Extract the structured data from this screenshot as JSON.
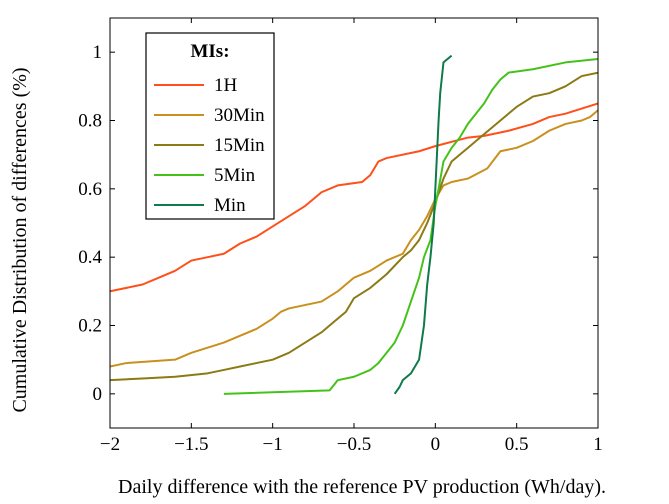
{
  "chart_data": {
    "type": "line",
    "xlabel": "Daily difference with the reference PV production (Wh/day).",
    "ylabel": "Cumulative Distribution of differences (%)",
    "xlim": [
      -2,
      1
    ],
    "ylim": [
      -0.1,
      1.1
    ],
    "xticks": [
      -2,
      -1.5,
      -1,
      -0.5,
      0,
      0.5,
      1
    ],
    "xtick_labels": [
      "−2",
      "−1.5",
      "−1",
      "−0.5",
      "0",
      "0.5",
      "1"
    ],
    "yticks": [
      0,
      0.2,
      0.4,
      0.6,
      0.8,
      1
    ],
    "ytick_labels": [
      "0",
      "0.2",
      "0.4",
      "0.6",
      "0.8",
      "1"
    ],
    "grid": false,
    "legend": {
      "title": "MIs:",
      "position": "top-left"
    },
    "series": [
      {
        "name": "1H",
        "color": "#ff4f1a",
        "points": [
          [
            -2,
            0.3
          ],
          [
            -1.8,
            0.32
          ],
          [
            -1.7,
            0.34
          ],
          [
            -1.6,
            0.36
          ],
          [
            -1.5,
            0.39
          ],
          [
            -1.4,
            0.4
          ],
          [
            -1.3,
            0.41
          ],
          [
            -1.2,
            0.44
          ],
          [
            -1.1,
            0.46
          ],
          [
            -1.0,
            0.49
          ],
          [
            -0.9,
            0.52
          ],
          [
            -0.8,
            0.55
          ],
          [
            -0.75,
            0.57
          ],
          [
            -0.7,
            0.59
          ],
          [
            -0.6,
            0.61
          ],
          [
            -0.45,
            0.62
          ],
          [
            -0.4,
            0.64
          ],
          [
            -0.35,
            0.68
          ],
          [
            -0.3,
            0.69
          ],
          [
            -0.1,
            0.71
          ],
          [
            0,
            0.725
          ],
          [
            0.2,
            0.75
          ],
          [
            0.3,
            0.755
          ],
          [
            0.45,
            0.77
          ],
          [
            0.6,
            0.79
          ],
          [
            0.7,
            0.81
          ],
          [
            0.8,
            0.82
          ],
          [
            0.9,
            0.835
          ],
          [
            1.0,
            0.85
          ]
        ]
      },
      {
        "name": "30Min",
        "color": "#c8901e",
        "points": [
          [
            -2,
            0.08
          ],
          [
            -1.9,
            0.09
          ],
          [
            -1.6,
            0.1
          ],
          [
            -1.5,
            0.12
          ],
          [
            -1.3,
            0.15
          ],
          [
            -1.1,
            0.19
          ],
          [
            -1.0,
            0.22
          ],
          [
            -0.95,
            0.24
          ],
          [
            -0.9,
            0.25
          ],
          [
            -0.7,
            0.27
          ],
          [
            -0.6,
            0.3
          ],
          [
            -0.5,
            0.34
          ],
          [
            -0.4,
            0.36
          ],
          [
            -0.3,
            0.39
          ],
          [
            -0.2,
            0.41
          ],
          [
            -0.15,
            0.45
          ],
          [
            -0.1,
            0.48
          ],
          [
            -0.05,
            0.52
          ],
          [
            0,
            0.57
          ],
          [
            0.05,
            0.61
          ],
          [
            0.1,
            0.62
          ],
          [
            0.2,
            0.63
          ],
          [
            0.32,
            0.66
          ],
          [
            0.4,
            0.71
          ],
          [
            0.5,
            0.72
          ],
          [
            0.6,
            0.74
          ],
          [
            0.7,
            0.77
          ],
          [
            0.8,
            0.79
          ],
          [
            0.9,
            0.8
          ],
          [
            0.95,
            0.81
          ],
          [
            1.0,
            0.83
          ]
        ]
      },
      {
        "name": "15Min",
        "color": "#8c7a14",
        "points": [
          [
            -2,
            0.04
          ],
          [
            -1.8,
            0.045
          ],
          [
            -1.6,
            0.05
          ],
          [
            -1.4,
            0.06
          ],
          [
            -1.3,
            0.07
          ],
          [
            -1.2,
            0.08
          ],
          [
            -1.1,
            0.09
          ],
          [
            -1.0,
            0.1
          ],
          [
            -0.9,
            0.12
          ],
          [
            -0.8,
            0.15
          ],
          [
            -0.7,
            0.18
          ],
          [
            -0.6,
            0.22
          ],
          [
            -0.55,
            0.24
          ],
          [
            -0.5,
            0.28
          ],
          [
            -0.4,
            0.31
          ],
          [
            -0.3,
            0.35
          ],
          [
            -0.2,
            0.4
          ],
          [
            -0.15,
            0.42
          ],
          [
            -0.1,
            0.45
          ],
          [
            -0.05,
            0.5
          ],
          [
            0,
            0.56
          ],
          [
            0.05,
            0.63
          ],
          [
            0.1,
            0.68
          ],
          [
            0.2,
            0.72
          ],
          [
            0.3,
            0.76
          ],
          [
            0.4,
            0.8
          ],
          [
            0.5,
            0.84
          ],
          [
            0.6,
            0.87
          ],
          [
            0.7,
            0.88
          ],
          [
            0.8,
            0.9
          ],
          [
            0.9,
            0.93
          ],
          [
            1.0,
            0.94
          ]
        ]
      },
      {
        "name": "5Min",
        "color": "#45c21a",
        "points": [
          [
            -1.3,
            0.0
          ],
          [
            -0.65,
            0.01
          ],
          [
            -0.6,
            0.04
          ],
          [
            -0.5,
            0.05
          ],
          [
            -0.4,
            0.07
          ],
          [
            -0.35,
            0.09
          ],
          [
            -0.3,
            0.12
          ],
          [
            -0.25,
            0.15
          ],
          [
            -0.2,
            0.2
          ],
          [
            -0.15,
            0.27
          ],
          [
            -0.1,
            0.34
          ],
          [
            -0.07,
            0.4
          ],
          [
            -0.03,
            0.45
          ],
          [
            0,
            0.55
          ],
          [
            0.02,
            0.6
          ],
          [
            0.05,
            0.68
          ],
          [
            0.1,
            0.72
          ],
          [
            0.15,
            0.75
          ],
          [
            0.2,
            0.79
          ],
          [
            0.25,
            0.82
          ],
          [
            0.3,
            0.85
          ],
          [
            0.35,
            0.89
          ],
          [
            0.4,
            0.92
          ],
          [
            0.45,
            0.94
          ],
          [
            0.6,
            0.95
          ],
          [
            0.8,
            0.97
          ],
          [
            1.0,
            0.98
          ]
        ]
      },
      {
        "name": "Min",
        "color": "#0f7a4a",
        "points": [
          [
            -0.25,
            0.0
          ],
          [
            -0.22,
            0.02
          ],
          [
            -0.2,
            0.04
          ],
          [
            -0.15,
            0.06
          ],
          [
            -0.1,
            0.1
          ],
          [
            -0.07,
            0.2
          ],
          [
            -0.05,
            0.32
          ],
          [
            -0.03,
            0.4
          ],
          [
            -0.01,
            0.5
          ],
          [
            0,
            0.6
          ],
          [
            0.01,
            0.7
          ],
          [
            0.02,
            0.8
          ],
          [
            0.03,
            0.88
          ],
          [
            0.05,
            0.97
          ],
          [
            0.1,
            0.99
          ]
        ]
      }
    ]
  }
}
